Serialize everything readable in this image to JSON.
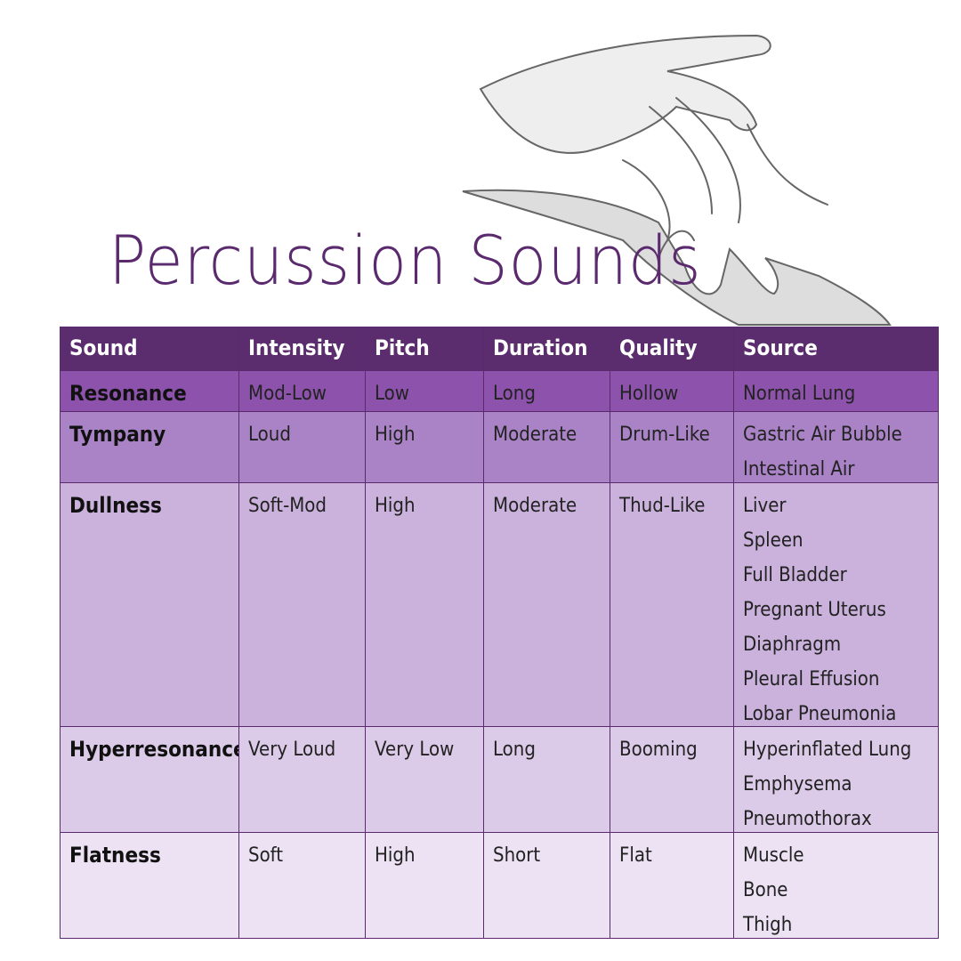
{
  "header": {
    "title": "Percussion Sounds"
  },
  "table": {
    "columns": [
      "Sound",
      "Intensity",
      "Pitch",
      "Duration",
      "Quality",
      "Source"
    ],
    "rows": [
      {
        "sound": "Resonance",
        "intensity": "Mod-Low",
        "pitch": "Low",
        "duration": "Long",
        "quality": "Hollow",
        "source": [
          "Normal Lung"
        ]
      },
      {
        "sound": "Tympany",
        "intensity": "Loud",
        "pitch": "High",
        "duration": "Moderate",
        "quality": "Drum-Like",
        "source": [
          "Gastric Air Bubble",
          "Intestinal Air"
        ]
      },
      {
        "sound": "Dullness",
        "intensity": "Soft-Mod",
        "pitch": "High",
        "duration": "Moderate",
        "quality": "Thud-Like",
        "source": [
          "Liver",
          "Spleen",
          "Full Bladder",
          "Pregnant Uterus",
          "Diaphragm",
          "Pleural Effusion",
          "Lobar Pneumonia"
        ]
      },
      {
        "sound": "Hyperresonance",
        "intensity": "Very Loud",
        "pitch": "Very Low",
        "duration": "Long",
        "quality": "Booming",
        "source": [
          "Hyperinflated Lung",
          "Emphysema",
          "Pneumothorax"
        ]
      },
      {
        "sound": "Flatness",
        "intensity": "Soft",
        "pitch": "High",
        "duration": "Short",
        "quality": "Flat",
        "source": [
          "Muscle",
          "Bone",
          "Thigh"
        ]
      }
    ]
  }
}
